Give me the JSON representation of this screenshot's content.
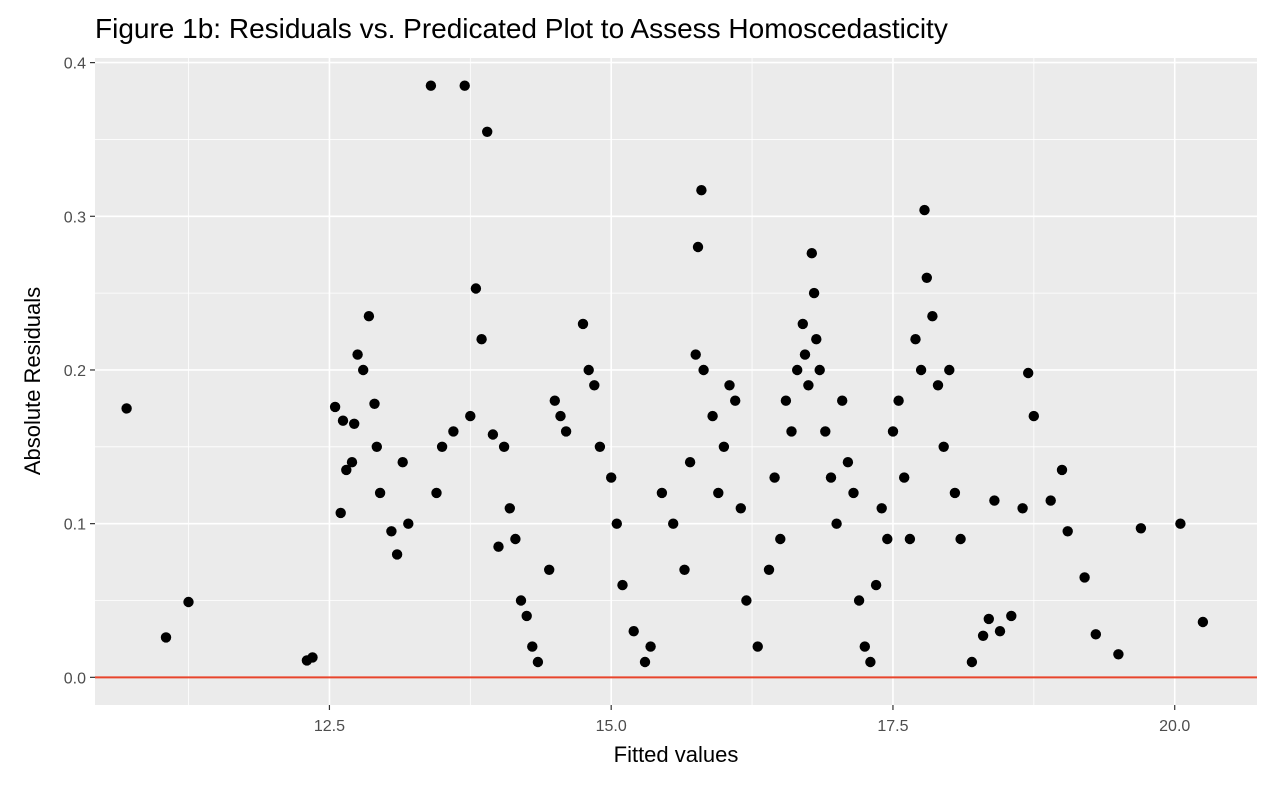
{
  "chart_data": {
    "type": "scatter",
    "title": "Figure 1b: Residuals vs. Predicated Plot to Assess Homoscedasticity",
    "xlabel": "Fitted values",
    "ylabel": "Absolute Residuals",
    "xlim": [
      10.42,
      20.73
    ],
    "ylim": [
      -0.018,
      0.403
    ],
    "xticks": [
      12.5,
      15.0,
      17.5,
      20.0
    ],
    "xtick_labels": [
      "12.5",
      "15.0",
      "17.5",
      "20.0"
    ],
    "yticks": [
      0.0,
      0.1,
      0.2,
      0.3,
      0.4
    ],
    "ytick_labels": [
      "0.0",
      "0.1",
      "0.2",
      "0.3",
      "0.4"
    ],
    "xminor": [
      11.25,
      13.75,
      16.25,
      18.75
    ],
    "yminor": [
      0.05,
      0.15,
      0.25,
      0.35
    ],
    "grid": true,
    "background": "#ebebeb",
    "point_color": "#000000",
    "reference_line": {
      "y": 0.0,
      "color": "#e8452c"
    },
    "x": [
      10.7,
      11.05,
      11.25,
      12.3,
      12.35,
      12.55,
      12.6,
      12.62,
      12.65,
      12.7,
      12.72,
      12.75,
      12.8,
      12.85,
      12.9,
      12.92,
      12.95,
      13.05,
      13.1,
      13.15,
      13.2,
      13.4,
      13.45,
      13.5,
      13.6,
      13.7,
      13.75,
      13.8,
      13.85,
      13.9,
      13.95,
      14.0,
      14.05,
      14.1,
      14.15,
      14.2,
      14.25,
      14.3,
      14.35,
      14.45,
      14.5,
      14.55,
      14.6,
      14.75,
      14.8,
      14.85,
      14.9,
      15.0,
      15.05,
      15.1,
      15.2,
      15.3,
      15.35,
      15.45,
      15.55,
      15.65,
      15.7,
      15.75,
      15.77,
      15.8,
      15.82,
      15.9,
      15.95,
      16.0,
      16.05,
      16.1,
      16.15,
      16.2,
      16.3,
      16.4,
      16.45,
      16.5,
      16.55,
      16.6,
      16.65,
      16.7,
      16.72,
      16.75,
      16.78,
      16.8,
      16.82,
      16.85,
      16.9,
      16.95,
      17.0,
      17.05,
      17.1,
      17.15,
      17.2,
      17.25,
      17.3,
      17.35,
      17.4,
      17.45,
      17.5,
      17.55,
      17.6,
      17.65,
      17.7,
      17.75,
      17.78,
      17.8,
      17.85,
      17.9,
      17.95,
      18.0,
      18.05,
      18.1,
      18.2,
      18.3,
      18.35,
      18.4,
      18.45,
      18.55,
      18.65,
      18.7,
      18.75,
      18.9,
      19.0,
      19.05,
      19.2,
      19.3,
      19.5,
      19.7,
      20.05,
      20.25
    ],
    "y": [
      0.175,
      0.026,
      0.049,
      0.011,
      0.013,
      0.176,
      0.107,
      0.167,
      0.135,
      0.14,
      0.165,
      0.21,
      0.2,
      0.235,
      0.178,
      0.15,
      0.12,
      0.095,
      0.08,
      0.14,
      0.1,
      0.385,
      0.12,
      0.15,
      0.16,
      0.385,
      0.17,
      0.253,
      0.22,
      0.355,
      0.158,
      0.085,
      0.15,
      0.11,
      0.09,
      0.05,
      0.04,
      0.02,
      0.01,
      0.07,
      0.18,
      0.17,
      0.16,
      0.23,
      0.2,
      0.19,
      0.15,
      0.13,
      0.1,
      0.06,
      0.03,
      0.01,
      0.02,
      0.12,
      0.1,
      0.07,
      0.14,
      0.21,
      0.28,
      0.317,
      0.2,
      0.17,
      0.12,
      0.15,
      0.19,
      0.18,
      0.11,
      0.05,
      0.02,
      0.07,
      0.13,
      0.09,
      0.18,
      0.16,
      0.2,
      0.23,
      0.21,
      0.19,
      0.276,
      0.25,
      0.22,
      0.2,
      0.16,
      0.13,
      0.1,
      0.18,
      0.14,
      0.12,
      0.05,
      0.02,
      0.01,
      0.06,
      0.11,
      0.09,
      0.16,
      0.18,
      0.13,
      0.09,
      0.22,
      0.2,
      0.304,
      0.26,
      0.235,
      0.19,
      0.15,
      0.2,
      0.12,
      0.09,
      0.01,
      0.027,
      0.038,
      0.115,
      0.03,
      0.04,
      0.11,
      0.198,
      0.17,
      0.115,
      0.135,
      0.095,
      0.065,
      0.028,
      0.015,
      0.097,
      0.1,
      0.036
    ]
  }
}
